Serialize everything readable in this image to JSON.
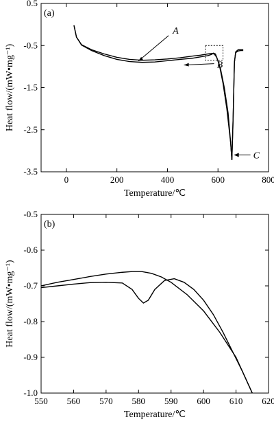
{
  "chart_data": [
    {
      "panel": "(a)",
      "type": "line",
      "xlabel": "Temperature/℃",
      "ylabel": "Heat flow/(mW•mg⁻¹)",
      "xlim": [
        -100,
        800
      ],
      "ylim": [
        -3.5,
        0.5
      ],
      "xticks": [
        0,
        200,
        400,
        600,
        800
      ],
      "yticks": [
        0.5,
        -0.5,
        -1.5,
        -2.5,
        -3.5
      ],
      "grid": false,
      "series": [
        {
          "x": [
            30,
            40,
            60,
            100,
            150,
            200,
            250,
            300,
            350,
            400,
            450,
            500,
            530,
            560,
            575,
            585,
            595,
            610,
            625,
            640,
            650,
            655,
            660,
            665,
            670,
            680,
            690,
            700
          ],
          "y": [
            -0.02,
            -0.3,
            -0.48,
            -0.6,
            -0.7,
            -0.78,
            -0.83,
            -0.85,
            -0.84,
            -0.82,
            -0.79,
            -0.75,
            -0.73,
            -0.7,
            -0.69,
            -0.7,
            -0.78,
            -1.05,
            -1.5,
            -2.1,
            -2.8,
            -3.22,
            -2.2,
            -0.9,
            -0.65,
            -0.6,
            -0.6,
            -0.6
          ]
        },
        {
          "x": [
            30,
            40,
            60,
            100,
            150,
            200,
            250,
            300,
            350,
            400,
            450,
            500,
            530,
            560,
            575,
            582,
            590,
            605,
            620,
            635,
            650,
            655,
            660,
            665,
            670,
            680,
            690,
            700
          ],
          "y": [
            -0.02,
            -0.3,
            -0.49,
            -0.62,
            -0.74,
            -0.83,
            -0.88,
            -0.9,
            -0.89,
            -0.86,
            -0.83,
            -0.8,
            -0.77,
            -0.74,
            -0.71,
            -0.68,
            -0.7,
            -0.95,
            -1.4,
            -2.0,
            -2.8,
            -3.22,
            -2.2,
            -0.9,
            -0.67,
            -0.63,
            -0.62,
            -0.62
          ]
        }
      ],
      "annotations": [
        {
          "label": "A",
          "x": 280,
          "y": -0.9
        },
        {
          "label": "B",
          "x": 460,
          "y": -0.93
        },
        {
          "label": "C",
          "x": 658,
          "y": -3.1
        }
      ],
      "zoom_region": {
        "xlim": [
          550,
          620
        ],
        "ylim": [
          -0.85,
          -0.5
        ]
      }
    },
    {
      "panel": "(b)",
      "type": "line",
      "xlabel": "Temperature/℃",
      "ylabel": "Heat flow/(mW•mg⁻¹)",
      "xlim": [
        550,
        620
      ],
      "ylim": [
        -1.0,
        -0.5
      ],
      "xticks": [
        550,
        560,
        570,
        580,
        590,
        600,
        610,
        620
      ],
      "yticks": [
        -0.5,
        -0.6,
        -0.7,
        -0.8,
        -0.9,
        -1.0
      ],
      "grid": false,
      "series": [
        {
          "x": [
            550,
            555,
            560,
            565,
            570,
            575,
            578,
            580,
            581.5,
            583,
            585,
            588,
            591,
            594,
            597,
            600,
            603,
            606,
            609,
            612,
            615
          ],
          "y": [
            -0.705,
            -0.7,
            -0.695,
            -0.691,
            -0.69,
            -0.692,
            -0.71,
            -0.735,
            -0.748,
            -0.74,
            -0.71,
            -0.685,
            -0.68,
            -0.69,
            -0.71,
            -0.74,
            -0.78,
            -0.83,
            -0.885,
            -0.94,
            -1.0
          ]
        },
        {
          "x": [
            550,
            555,
            560,
            565,
            570,
            575,
            578,
            581,
            584,
            587,
            590,
            595,
            600,
            605,
            610,
            615
          ],
          "y": [
            -0.7,
            -0.69,
            -0.682,
            -0.674,
            -0.667,
            -0.662,
            -0.66,
            -0.66,
            -0.665,
            -0.675,
            -0.69,
            -0.725,
            -0.77,
            -0.83,
            -0.9,
            -1.0
          ]
        }
      ]
    }
  ]
}
